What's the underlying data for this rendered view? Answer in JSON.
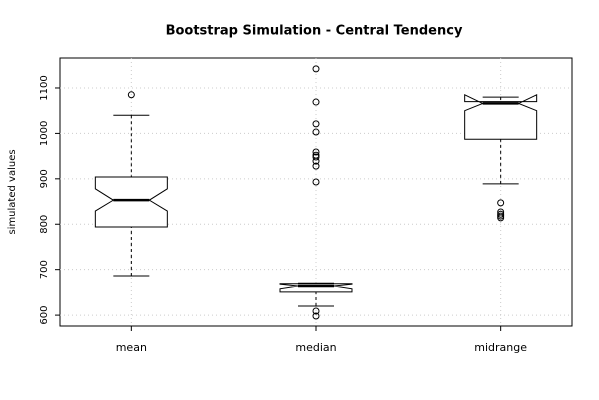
{
  "chart_data": {
    "type": "boxplot",
    "title": "Bootstrap Simulation - Central Tendency",
    "ylabel": "simulated values",
    "categories": [
      "mean",
      "median",
      "midrange"
    ],
    "boxes": [
      {
        "whisker_low": 686,
        "q1": 794,
        "notch_low": 829,
        "median": 853,
        "notch_high": 878,
        "q3": 904,
        "whisker_high": 1040,
        "outliers": [
          1085
        ]
      },
      {
        "whisker_low": 620,
        "q1": 651,
        "notch_low": 658,
        "median": 664,
        "notch_high": 668,
        "q3": 669,
        "whisker_high": 670,
        "outliers": [
          1142,
          1069,
          1021,
          1003,
          959,
          952,
          948,
          939,
          928,
          893,
          609,
          598
        ]
      },
      {
        "whisker_low": 889,
        "q1": 987,
        "notch_low": 1050,
        "median": 1066,
        "notch_high": 1085,
        "q3": 1070,
        "whisker_high": 1080,
        "outliers": [
          847,
          827,
          822,
          818,
          814
        ]
      }
    ],
    "color": "#000000",
    "ylim": [
      576,
      1166
    ],
    "yticks": [
      600,
      700,
      800,
      900,
      1000,
      1100
    ],
    "grid": true
  }
}
